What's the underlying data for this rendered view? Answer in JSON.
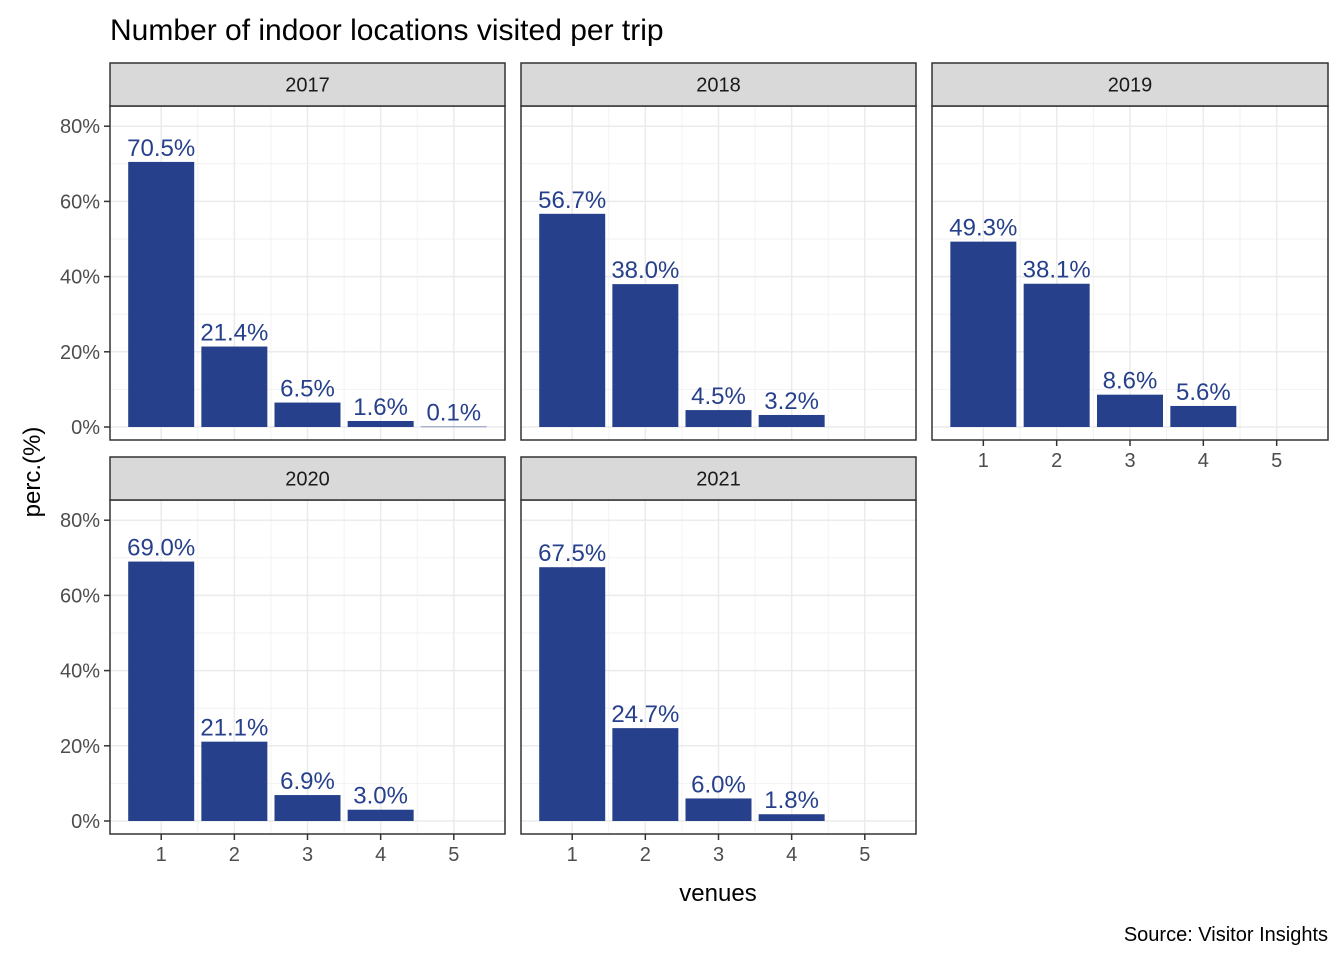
{
  "chart_data": {
    "type": "bar",
    "title": "Number of indoor locations visited per trip",
    "xlabel": "venues",
    "ylabel": "perc.(%)",
    "caption": "Source: Visitor Insights",
    "categories": [
      "1",
      "2",
      "3",
      "4",
      "5"
    ],
    "ylim": [
      0,
      0.84
    ],
    "yticks": [
      0,
      0.2,
      0.4,
      0.6,
      0.8
    ],
    "ytick_labels": [
      "0%",
      "20%",
      "40%",
      "60%",
      "80%"
    ],
    "grid": true,
    "bar_color": "#27408b",
    "label_color": "#27408b",
    "strip_fill": "#d9d9d9",
    "panels": [
      {
        "name": "2017",
        "values": [
          0.705,
          0.214,
          0.065,
          0.016,
          0.001
        ],
        "labels": [
          "70.5%",
          "21.4%",
          "6.5%",
          "1.6%",
          "0.1%"
        ]
      },
      {
        "name": "2018",
        "values": [
          0.567,
          0.38,
          0.045,
          0.032,
          null
        ],
        "labels": [
          "56.7%",
          "38.0%",
          "4.5%",
          "3.2%",
          null
        ]
      },
      {
        "name": "2019",
        "values": [
          0.493,
          0.381,
          0.086,
          0.056,
          null
        ],
        "labels": [
          "49.3%",
          "38.1%",
          "8.6%",
          "5.6%",
          null
        ]
      },
      {
        "name": "2020",
        "values": [
          0.69,
          0.211,
          0.069,
          0.03,
          null
        ],
        "labels": [
          "69.0%",
          "21.1%",
          "6.9%",
          "3.0%",
          null
        ]
      },
      {
        "name": "2021",
        "values": [
          0.675,
          0.247,
          0.06,
          0.018,
          null
        ],
        "labels": [
          "67.5%",
          "24.7%",
          "6.0%",
          "1.8%",
          null
        ]
      }
    ]
  }
}
